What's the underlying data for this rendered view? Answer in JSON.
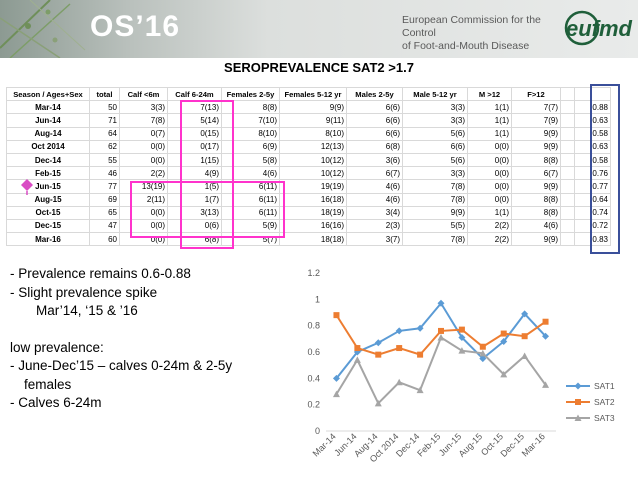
{
  "header": {
    "os_label": "OS’16",
    "ec_line1": "European Commission for the Control",
    "ec_line2": "of Foot-and-Mouth Disease",
    "logo_text": "eufmd"
  },
  "slide_title": "SEROPREVALENCE SAT2    >1.7",
  "table": {
    "headers": [
      "Season / Ages+Sex",
      "total",
      "Calf <6m",
      "Calf 6-24m",
      "Females 2-5y",
      "Females 5-12 yr",
      "Males 2-5y",
      "Male 5-12 yr",
      "M >12",
      "F>12",
      "",
      ""
    ],
    "rows": [
      [
        "Mar-14",
        "50",
        "3(3)",
        "7(13)",
        "8(8)",
        "9(9)",
        "6(6)",
        "3(3)",
        "1(1)",
        "7(7)",
        "",
        "0.88"
      ],
      [
        "Jun-14",
        "71",
        "7(8)",
        "5(14)",
        "7(10)",
        "9(11)",
        "6(6)",
        "3(3)",
        "1(1)",
        "7(9)",
        "",
        "0.63"
      ],
      [
        "Aug-14",
        "64",
        "0(7)",
        "0(15)",
        "8(10)",
        "8(10)",
        "6(6)",
        "5(6)",
        "1(1)",
        "9(9)",
        "",
        "0.58"
      ],
      [
        "Oct 2014",
        "62",
        "0(0)",
        "0(17)",
        "6(9)",
        "12(13)",
        "6(8)",
        "6(6)",
        "0(0)",
        "9(9)",
        "",
        "0.63"
      ],
      [
        "Dec-14",
        "55",
        "0(0)",
        "1(15)",
        "5(8)",
        "10(12)",
        "3(6)",
        "5(6)",
        "0(0)",
        "8(8)",
        "",
        "0.58"
      ],
      [
        "Feb-15",
        "46",
        "2(2)",
        "4(9)",
        "4(6)",
        "10(12)",
        "6(7)",
        "3(3)",
        "0(0)",
        "6(7)",
        "",
        "0.76"
      ],
      [
        "Jun-15",
        "77",
        "13(19)",
        "1(5)",
        "6(11)",
        "19(19)",
        "4(6)",
        "7(8)",
        "0(0)",
        "9(9)",
        "",
        "0.77"
      ],
      [
        "Aug-15",
        "69",
        "2(11)",
        "1(7)",
        "6(11)",
        "16(18)",
        "4(6)",
        "7(8)",
        "0(0)",
        "8(8)",
        "",
        "0.64"
      ],
      [
        "Oct-15",
        "65",
        "0(0)",
        "3(13)",
        "6(11)",
        "18(19)",
        "3(4)",
        "9(9)",
        "1(1)",
        "8(8)",
        "",
        "0.74"
      ],
      [
        "Dec-15",
        "47",
        "0(0)",
        "0(6)",
        "5(9)",
        "16(16)",
        "2(3)",
        "5(5)",
        "2(2)",
        "4(6)",
        "",
        "0.72"
      ],
      [
        "Mar-16",
        "60",
        "0(0)",
        "6(8)",
        "5(7)",
        "18(18)",
        "3(7)",
        "7(8)",
        "2(2)",
        "9(9)",
        "",
        "0.83"
      ]
    ]
  },
  "notes": {
    "line1": "- Prevalence remains 0.6-0.88",
    "line2": "- Slight prevalence spike",
    "line3": "Mar’14, ‘15 & ’16",
    "line4": "low prevalence:",
    "line5": "- June-Dec’15 – calves 0-24m & 2-5y",
    "line6": "females",
    "line7": "- Calves 6-24m"
  },
  "colors": {
    "highlight": "#ff33cc",
    "box_blue": "#3a4f9a",
    "marker": "#d94cc4",
    "SAT1": "#5b9bd5",
    "SAT2": "#ed7d31",
    "SAT3": "#a5a5a5"
  },
  "chart_data": {
    "type": "line",
    "categories": [
      "Mar-14",
      "Jun-14",
      "Aug-14",
      "Oct 2014",
      "Dec-14",
      "Feb-15",
      "Jun-15",
      "Aug-15",
      "Oct-15",
      "Dec-15",
      "Mar-16"
    ],
    "series": [
      {
        "name": "SAT1",
        "values": [
          0.4,
          0.6,
          0.67,
          0.76,
          0.78,
          0.97,
          0.71,
          0.55,
          0.68,
          0.89,
          0.72
        ]
      },
      {
        "name": "SAT2",
        "values": [
          0.88,
          0.63,
          0.58,
          0.63,
          0.58,
          0.76,
          0.77,
          0.64,
          0.74,
          0.72,
          0.83
        ]
      },
      {
        "name": "SAT3",
        "values": [
          0.28,
          0.54,
          0.21,
          0.37,
          0.31,
          0.71,
          0.61,
          0.59,
          0.43,
          0.57,
          0.35
        ]
      }
    ],
    "ylim": [
      0,
      1.2
    ],
    "yticks": [
      "0",
      "0.2",
      "0.4",
      "0.6",
      "0.8",
      "1",
      "1.2"
    ],
    "title": "",
    "xlabel": "",
    "ylabel": "",
    "grid": false,
    "legend": "right"
  }
}
